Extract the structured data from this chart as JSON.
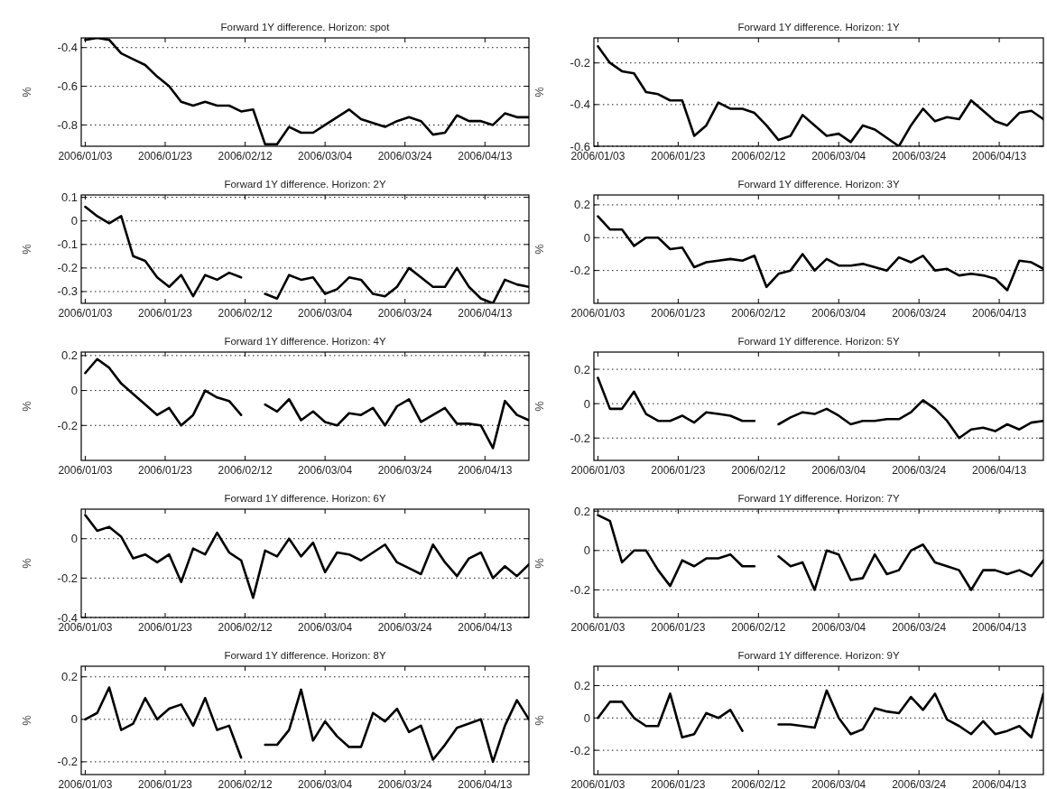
{
  "chart_data": [
    {
      "type": "line",
      "title": "Forward 1Y difference. Horizon: spot",
      "ylabel": "%",
      "grid": "y",
      "xlim": [
        "2006-01-02",
        "2006-04-24"
      ],
      "xticks": [
        {
          "value": "2006-01-03",
          "label": "2006/01/03"
        },
        {
          "value": "2006-01-23",
          "label": "2006/01/23"
        },
        {
          "value": "2006-02-12",
          "label": "2006/02/12"
        },
        {
          "value": "2006-03-04",
          "label": "2006/03/04"
        },
        {
          "value": "2006-03-24",
          "label": "2006/03/24"
        },
        {
          "value": "2006-04-13",
          "label": "2006/04/13"
        }
      ],
      "ylim": [
        -0.91,
        -0.35
      ],
      "yticks": [
        -0.8,
        -0.6,
        -0.4
      ],
      "x": [
        "2006-01-03",
        "2006-01-06",
        "2006-01-09",
        "2006-01-12",
        "2006-01-15",
        "2006-01-18",
        "2006-01-21",
        "2006-01-24",
        "2006-01-27",
        "2006-01-30",
        "2006-02-02",
        "2006-02-05",
        "2006-02-08",
        "2006-02-11",
        "2006-02-14",
        "2006-02-17",
        "2006-02-20",
        "2006-02-23",
        "2006-02-26",
        "2006-03-01",
        "2006-03-04",
        "2006-03-07",
        "2006-03-10",
        "2006-03-13",
        "2006-03-16",
        "2006-03-19",
        "2006-03-22",
        "2006-03-25",
        "2006-03-28",
        "2006-03-31",
        "2006-04-03",
        "2006-04-06",
        "2006-04-09",
        "2006-04-12",
        "2006-04-15",
        "2006-04-18",
        "2006-04-21",
        "2006-04-24"
      ],
      "series": [
        {
          "color": "#000000",
          "values": [
            -0.36,
            -0.35,
            -0.36,
            -0.43,
            -0.46,
            -0.49,
            -0.55,
            -0.6,
            -0.68,
            -0.7,
            -0.68,
            -0.7,
            -0.7,
            -0.73,
            -0.72,
            -0.9,
            -0.9,
            -0.81,
            -0.84,
            -0.84,
            -0.8,
            -0.76,
            -0.72,
            -0.77,
            -0.79,
            -0.81,
            -0.78,
            -0.76,
            -0.78,
            -0.85,
            -0.84,
            -0.75,
            -0.78,
            -0.78,
            -0.8,
            -0.74,
            -0.76,
            -0.76
          ]
        }
      ]
    },
    {
      "type": "line",
      "title": "Forward 1Y difference. Horizon: 1Y",
      "ylabel": "%",
      "grid": "y",
      "xlim": [
        "2006-01-02",
        "2006-04-24"
      ],
      "xticks": [
        {
          "value": "2006-01-03",
          "label": "2006/01/03"
        },
        {
          "value": "2006-01-23",
          "label": "2006/01/23"
        },
        {
          "value": "2006-02-12",
          "label": "2006/02/12"
        },
        {
          "value": "2006-03-04",
          "label": "2006/03/04"
        },
        {
          "value": "2006-03-24",
          "label": "2006/03/24"
        },
        {
          "value": "2006-04-13",
          "label": "2006/04/13"
        }
      ],
      "ylim": [
        -0.6,
        -0.08
      ],
      "yticks": [
        -0.6,
        -0.4,
        -0.2
      ],
      "x": [
        "2006-01-03",
        "2006-01-06",
        "2006-01-09",
        "2006-01-12",
        "2006-01-15",
        "2006-01-18",
        "2006-01-21",
        "2006-01-24",
        "2006-01-27",
        "2006-01-30",
        "2006-02-02",
        "2006-02-05",
        "2006-02-08",
        "2006-02-11",
        "2006-02-14",
        "2006-02-17",
        "2006-02-20",
        "2006-02-23",
        "2006-02-26",
        "2006-03-01",
        "2006-03-04",
        "2006-03-07",
        "2006-03-10",
        "2006-03-13",
        "2006-03-16",
        "2006-03-19",
        "2006-03-22",
        "2006-03-25",
        "2006-03-28",
        "2006-03-31",
        "2006-04-03",
        "2006-04-06",
        "2006-04-09",
        "2006-04-12",
        "2006-04-15",
        "2006-04-18",
        "2006-04-21",
        "2006-04-24"
      ],
      "series": [
        {
          "color": "#000000",
          "values": [
            -0.12,
            -0.2,
            -0.24,
            -0.25,
            -0.34,
            -0.35,
            -0.38,
            -0.38,
            -0.55,
            -0.5,
            -0.39,
            -0.42,
            -0.42,
            -0.44,
            -0.5,
            -0.57,
            -0.55,
            -0.45,
            -0.5,
            -0.55,
            -0.54,
            -0.58,
            -0.5,
            -0.52,
            -0.56,
            -0.6,
            -0.5,
            -0.42,
            -0.48,
            -0.46,
            -0.47,
            -0.38,
            -0.43,
            -0.48,
            -0.5,
            -0.44,
            -0.43,
            -0.47
          ]
        }
      ]
    },
    {
      "type": "line",
      "title": "Forward 1Y difference. Horizon: 2Y",
      "ylabel": "%",
      "grid": "y",
      "xlim": [
        "2006-01-02",
        "2006-04-24"
      ],
      "xticks": [
        {
          "value": "2006-01-03",
          "label": "2006/01/03"
        },
        {
          "value": "2006-01-23",
          "label": "2006/01/23"
        },
        {
          "value": "2006-02-12",
          "label": "2006/02/12"
        },
        {
          "value": "2006-03-04",
          "label": "2006/03/04"
        },
        {
          "value": "2006-03-24",
          "label": "2006/03/24"
        },
        {
          "value": "2006-04-13",
          "label": "2006/04/13"
        }
      ],
      "ylim": [
        -0.35,
        0.11
      ],
      "yticks": [
        -0.3,
        -0.2,
        -0.1,
        0,
        0.1
      ],
      "x": [
        "2006-01-03",
        "2006-01-06",
        "2006-01-09",
        "2006-01-12",
        "2006-01-15",
        "2006-01-18",
        "2006-01-21",
        "2006-01-24",
        "2006-01-27",
        "2006-01-30",
        "2006-02-02",
        "2006-02-05",
        "2006-02-08",
        "2006-02-11",
        "2006-02-14",
        "2006-02-17",
        "2006-02-20",
        "2006-02-23",
        "2006-02-26",
        "2006-03-01",
        "2006-03-04",
        "2006-03-07",
        "2006-03-10",
        "2006-03-13",
        "2006-03-16",
        "2006-03-19",
        "2006-03-22",
        "2006-03-25",
        "2006-03-28",
        "2006-03-31",
        "2006-04-03",
        "2006-04-06",
        "2006-04-09",
        "2006-04-12",
        "2006-04-15",
        "2006-04-18",
        "2006-04-21",
        "2006-04-24"
      ],
      "series": [
        {
          "color": "#000000",
          "values": [
            0.06,
            0.02,
            -0.01,
            0.02,
            -0.15,
            -0.17,
            -0.24,
            -0.28,
            -0.23,
            -0.32,
            -0.23,
            -0.25,
            -0.22,
            -0.24,
            null,
            -0.31,
            -0.33,
            -0.23,
            -0.25,
            -0.24,
            -0.31,
            -0.29,
            -0.24,
            -0.25,
            -0.31,
            -0.32,
            -0.28,
            -0.2,
            -0.24,
            -0.28,
            -0.28,
            -0.2,
            -0.28,
            -0.33,
            -0.35,
            -0.25,
            -0.27,
            -0.28
          ]
        }
      ]
    },
    {
      "type": "line",
      "title": "Forward 1Y difference. Horizon: 3Y",
      "ylabel": "%",
      "grid": "y",
      "xlim": [
        "2006-01-02",
        "2006-04-24"
      ],
      "xticks": [
        {
          "value": "2006-01-03",
          "label": "2006/01/03"
        },
        {
          "value": "2006-01-23",
          "label": "2006/01/23"
        },
        {
          "value": "2006-02-12",
          "label": "2006/02/12"
        },
        {
          "value": "2006-03-04",
          "label": "2006/03/04"
        },
        {
          "value": "2006-03-24",
          "label": "2006/03/24"
        },
        {
          "value": "2006-04-13",
          "label": "2006/04/13"
        }
      ],
      "ylim": [
        -0.4,
        0.26
      ],
      "yticks": [
        -0.2,
        0,
        0.2
      ],
      "x": [
        "2006-01-03",
        "2006-01-06",
        "2006-01-09",
        "2006-01-12",
        "2006-01-15",
        "2006-01-18",
        "2006-01-21",
        "2006-01-24",
        "2006-01-27",
        "2006-01-30",
        "2006-02-02",
        "2006-02-05",
        "2006-02-08",
        "2006-02-11",
        "2006-02-14",
        "2006-02-17",
        "2006-02-20",
        "2006-02-23",
        "2006-02-26",
        "2006-03-01",
        "2006-03-04",
        "2006-03-07",
        "2006-03-10",
        "2006-03-13",
        "2006-03-16",
        "2006-03-19",
        "2006-03-22",
        "2006-03-25",
        "2006-03-28",
        "2006-03-31",
        "2006-04-03",
        "2006-04-06",
        "2006-04-09",
        "2006-04-12",
        "2006-04-15",
        "2006-04-18",
        "2006-04-21",
        "2006-04-24"
      ],
      "series": [
        {
          "color": "#000000",
          "values": [
            0.13,
            0.05,
            0.05,
            -0.05,
            0,
            0,
            -0.07,
            -0.06,
            -0.18,
            -0.15,
            -0.14,
            -0.13,
            -0.14,
            -0.11,
            -0.3,
            -0.22,
            -0.2,
            -0.1,
            -0.2,
            -0.13,
            -0.17,
            -0.17,
            -0.16,
            -0.18,
            -0.2,
            -0.12,
            -0.15,
            -0.11,
            -0.2,
            -0.19,
            -0.23,
            -0.22,
            -0.23,
            -0.25,
            -0.32,
            -0.14,
            -0.15,
            -0.19
          ]
        }
      ]
    },
    {
      "type": "line",
      "title": "Forward 1Y difference. Horizon: 4Y",
      "ylabel": "%",
      "grid": "y",
      "xlim": [
        "2006-01-02",
        "2006-04-24"
      ],
      "xticks": [
        {
          "value": "2006-01-03",
          "label": "2006/01/03"
        },
        {
          "value": "2006-01-23",
          "label": "2006/01/23"
        },
        {
          "value": "2006-02-12",
          "label": "2006/02/12"
        },
        {
          "value": "2006-03-04",
          "label": "2006/03/04"
        },
        {
          "value": "2006-03-24",
          "label": "2006/03/24"
        },
        {
          "value": "2006-04-13",
          "label": "2006/04/13"
        }
      ],
      "ylim": [
        -0.4,
        0.22
      ],
      "yticks": [
        -0.2,
        0,
        0.2
      ],
      "x": [
        "2006-01-03",
        "2006-01-06",
        "2006-01-09",
        "2006-01-12",
        "2006-01-15",
        "2006-01-18",
        "2006-01-21",
        "2006-01-24",
        "2006-01-27",
        "2006-01-30",
        "2006-02-02",
        "2006-02-05",
        "2006-02-08",
        "2006-02-11",
        "2006-02-14",
        "2006-02-17",
        "2006-02-20",
        "2006-02-23",
        "2006-02-26",
        "2006-03-01",
        "2006-03-04",
        "2006-03-07",
        "2006-03-10",
        "2006-03-13",
        "2006-03-16",
        "2006-03-19",
        "2006-03-22",
        "2006-03-25",
        "2006-03-28",
        "2006-03-31",
        "2006-04-03",
        "2006-04-06",
        "2006-04-09",
        "2006-04-12",
        "2006-04-15",
        "2006-04-18",
        "2006-04-21",
        "2006-04-24"
      ],
      "series": [
        {
          "color": "#000000",
          "values": [
            0.1,
            0.18,
            0.13,
            0.04,
            -0.02,
            -0.08,
            -0.14,
            -0.1,
            -0.2,
            -0.14,
            0,
            -0.04,
            -0.06,
            -0.14,
            null,
            -0.08,
            -0.12,
            -0.05,
            -0.17,
            -0.12,
            -0.18,
            -0.2,
            -0.13,
            -0.14,
            -0.1,
            -0.2,
            -0.09,
            -0.05,
            -0.18,
            -0.14,
            -0.1,
            -0.19,
            -0.19,
            -0.2,
            -0.33,
            -0.06,
            -0.14,
            -0.17
          ]
        }
      ]
    },
    {
      "type": "line",
      "title": "Forward 1Y difference. Horizon: 5Y",
      "ylabel": "%",
      "grid": "y",
      "xlim": [
        "2006-01-02",
        "2006-04-24"
      ],
      "xticks": [
        {
          "value": "2006-01-03",
          "label": "2006/01/03"
        },
        {
          "value": "2006-01-23",
          "label": "2006/01/23"
        },
        {
          "value": "2006-02-12",
          "label": "2006/02/12"
        },
        {
          "value": "2006-03-04",
          "label": "2006/03/04"
        },
        {
          "value": "2006-03-24",
          "label": "2006/03/24"
        },
        {
          "value": "2006-04-13",
          "label": "2006/04/13"
        }
      ],
      "ylim": [
        -0.33,
        0.3
      ],
      "yticks": [
        -0.2,
        0,
        0.2
      ],
      "x": [
        "2006-01-03",
        "2006-01-06",
        "2006-01-09",
        "2006-01-12",
        "2006-01-15",
        "2006-01-18",
        "2006-01-21",
        "2006-01-24",
        "2006-01-27",
        "2006-01-30",
        "2006-02-02",
        "2006-02-05",
        "2006-02-08",
        "2006-02-11",
        "2006-02-14",
        "2006-02-17",
        "2006-02-20",
        "2006-02-23",
        "2006-02-26",
        "2006-03-01",
        "2006-03-04",
        "2006-03-07",
        "2006-03-10",
        "2006-03-13",
        "2006-03-16",
        "2006-03-19",
        "2006-03-22",
        "2006-03-25",
        "2006-03-28",
        "2006-03-31",
        "2006-04-03",
        "2006-04-06",
        "2006-04-09",
        "2006-04-12",
        "2006-04-15",
        "2006-04-18",
        "2006-04-21",
        "2006-04-24"
      ],
      "series": [
        {
          "color": "#000000",
          "values": [
            0.15,
            -0.03,
            -0.03,
            0.07,
            -0.06,
            -0.1,
            -0.1,
            -0.07,
            -0.11,
            -0.05,
            -0.06,
            -0.07,
            -0.1,
            -0.1,
            null,
            -0.12,
            -0.08,
            -0.05,
            -0.06,
            -0.03,
            -0.07,
            -0.12,
            -0.1,
            -0.1,
            -0.09,
            -0.09,
            -0.05,
            0.02,
            -0.03,
            -0.1,
            -0.2,
            -0.15,
            -0.14,
            -0.16,
            -0.12,
            -0.15,
            -0.11,
            -0.1
          ]
        }
      ]
    },
    {
      "type": "line",
      "title": "Forward 1Y difference. Horizon: 6Y",
      "ylabel": "%",
      "grid": "y",
      "xlim": [
        "2006-01-02",
        "2006-04-24"
      ],
      "xticks": [
        {
          "value": "2006-01-03",
          "label": "2006/01/03"
        },
        {
          "value": "2006-01-23",
          "label": "2006/01/23"
        },
        {
          "value": "2006-02-12",
          "label": "2006/02/12"
        },
        {
          "value": "2006-03-04",
          "label": "2006/03/04"
        },
        {
          "value": "2006-03-24",
          "label": "2006/03/24"
        },
        {
          "value": "2006-04-13",
          "label": "2006/04/13"
        }
      ],
      "ylim": [
        -0.4,
        0.15
      ],
      "yticks": [
        -0.4,
        -0.2,
        0
      ],
      "x": [
        "2006-01-03",
        "2006-01-06",
        "2006-01-09",
        "2006-01-12",
        "2006-01-15",
        "2006-01-18",
        "2006-01-21",
        "2006-01-24",
        "2006-01-27",
        "2006-01-30",
        "2006-02-02",
        "2006-02-05",
        "2006-02-08",
        "2006-02-11",
        "2006-02-14",
        "2006-02-17",
        "2006-02-20",
        "2006-02-23",
        "2006-02-26",
        "2006-03-01",
        "2006-03-04",
        "2006-03-07",
        "2006-03-10",
        "2006-03-13",
        "2006-03-16",
        "2006-03-19",
        "2006-03-22",
        "2006-03-25",
        "2006-03-28",
        "2006-03-31",
        "2006-04-03",
        "2006-04-06",
        "2006-04-09",
        "2006-04-12",
        "2006-04-15",
        "2006-04-18",
        "2006-04-21",
        "2006-04-24"
      ],
      "series": [
        {
          "color": "#000000",
          "values": [
            0.12,
            0.04,
            0.06,
            0.01,
            -0.1,
            -0.08,
            -0.12,
            -0.08,
            -0.22,
            -0.05,
            -0.08,
            0.03,
            -0.07,
            -0.11,
            -0.3,
            -0.06,
            -0.09,
            0,
            -0.09,
            -0.02,
            -0.17,
            -0.07,
            -0.08,
            -0.11,
            -0.07,
            -0.03,
            -0.12,
            -0.15,
            -0.18,
            -0.03,
            -0.12,
            -0.19,
            -0.1,
            -0.07,
            -0.2,
            -0.14,
            -0.19,
            -0.13
          ]
        }
      ]
    },
    {
      "type": "line",
      "title": "Forward 1Y difference. Horizon: 7Y",
      "ylabel": "%",
      "grid": "y",
      "xlim": [
        "2006-01-02",
        "2006-04-24"
      ],
      "xticks": [
        {
          "value": "2006-01-03",
          "label": "2006/01/03"
        },
        {
          "value": "2006-01-23",
          "label": "2006/01/23"
        },
        {
          "value": "2006-02-12",
          "label": "2006/02/12"
        },
        {
          "value": "2006-03-04",
          "label": "2006/03/04"
        },
        {
          "value": "2006-03-24",
          "label": "2006/03/24"
        },
        {
          "value": "2006-04-13",
          "label": "2006/04/13"
        }
      ],
      "ylim": [
        -0.34,
        0.21
      ],
      "yticks": [
        -0.2,
        0,
        0.2
      ],
      "x": [
        "2006-01-03",
        "2006-01-06",
        "2006-01-09",
        "2006-01-12",
        "2006-01-15",
        "2006-01-18",
        "2006-01-21",
        "2006-01-24",
        "2006-01-27",
        "2006-01-30",
        "2006-02-02",
        "2006-02-05",
        "2006-02-08",
        "2006-02-11",
        "2006-02-14",
        "2006-02-17",
        "2006-02-20",
        "2006-02-23",
        "2006-02-26",
        "2006-03-01",
        "2006-03-04",
        "2006-03-07",
        "2006-03-10",
        "2006-03-13",
        "2006-03-16",
        "2006-03-19",
        "2006-03-22",
        "2006-03-25",
        "2006-03-28",
        "2006-03-31",
        "2006-04-03",
        "2006-04-06",
        "2006-04-09",
        "2006-04-12",
        "2006-04-15",
        "2006-04-18",
        "2006-04-21",
        "2006-04-24"
      ],
      "series": [
        {
          "color": "#000000",
          "values": [
            0.18,
            0.15,
            -0.06,
            0,
            0,
            -0.1,
            -0.18,
            -0.05,
            -0.08,
            -0.04,
            -0.04,
            -0.02,
            -0.08,
            -0.08,
            null,
            -0.03,
            -0.08,
            -0.06,
            -0.2,
            0,
            -0.02,
            -0.15,
            -0.14,
            -0.02,
            -0.12,
            -0.1,
            0,
            0.03,
            -0.06,
            -0.08,
            -0.1,
            -0.2,
            -0.1,
            -0.1,
            -0.12,
            -0.1,
            -0.13,
            -0.05
          ]
        }
      ]
    },
    {
      "type": "line",
      "title": "Forward 1Y difference. Horizon: 8Y",
      "ylabel": "%",
      "grid": "y",
      "xlim": [
        "2006-01-02",
        "2006-04-24"
      ],
      "xticks": [
        {
          "value": "2006-01-03",
          "label": "2006/01/03"
        },
        {
          "value": "2006-01-23",
          "label": "2006/01/23"
        },
        {
          "value": "2006-02-12",
          "label": "2006/02/12"
        },
        {
          "value": "2006-03-04",
          "label": "2006/03/04"
        },
        {
          "value": "2006-03-24",
          "label": "2006/03/24"
        },
        {
          "value": "2006-04-13",
          "label": "2006/04/13"
        }
      ],
      "ylim": [
        -0.26,
        0.25
      ],
      "yticks": [
        -0.2,
        0,
        0.2
      ],
      "x": [
        "2006-01-03",
        "2006-01-06",
        "2006-01-09",
        "2006-01-12",
        "2006-01-15",
        "2006-01-18",
        "2006-01-21",
        "2006-01-24",
        "2006-01-27",
        "2006-01-30",
        "2006-02-02",
        "2006-02-05",
        "2006-02-08",
        "2006-02-11",
        "2006-02-14",
        "2006-02-17",
        "2006-02-20",
        "2006-02-23",
        "2006-02-26",
        "2006-03-01",
        "2006-03-04",
        "2006-03-07",
        "2006-03-10",
        "2006-03-13",
        "2006-03-16",
        "2006-03-19",
        "2006-03-22",
        "2006-03-25",
        "2006-03-28",
        "2006-03-31",
        "2006-04-03",
        "2006-04-06",
        "2006-04-09",
        "2006-04-12",
        "2006-04-15",
        "2006-04-18",
        "2006-04-21",
        "2006-04-24"
      ],
      "series": [
        {
          "color": "#000000",
          "values": [
            0,
            0.03,
            0.15,
            -0.05,
            -0.02,
            0.1,
            0,
            0.05,
            0.07,
            -0.03,
            0.1,
            -0.05,
            -0.03,
            -0.18,
            null,
            -0.12,
            -0.12,
            -0.05,
            0.14,
            -0.1,
            -0.01,
            -0.08,
            -0.13,
            -0.13,
            0.03,
            -0.01,
            0.05,
            -0.06,
            -0.03,
            -0.19,
            -0.12,
            -0.04,
            -0.02,
            0,
            -0.2,
            -0.03,
            0.09,
            0
          ]
        }
      ]
    },
    {
      "type": "line",
      "title": "Forward 1Y difference. Horizon: 9Y",
      "ylabel": "%",
      "grid": "y",
      "xlim": [
        "2006-01-02",
        "2006-04-24"
      ],
      "xticks": [
        {
          "value": "2006-01-03",
          "label": "2006/01/03"
        },
        {
          "value": "2006-01-23",
          "label": "2006/01/23"
        },
        {
          "value": "2006-02-12",
          "label": "2006/02/12"
        },
        {
          "value": "2006-03-04",
          "label": "2006/03/04"
        },
        {
          "value": "2006-03-24",
          "label": "2006/03/24"
        },
        {
          "value": "2006-04-13",
          "label": "2006/04/13"
        }
      ],
      "ylim": [
        -0.35,
        0.32
      ],
      "yticks": [
        -0.2,
        0,
        0.2
      ],
      "x": [
        "2006-01-03",
        "2006-01-06",
        "2006-01-09",
        "2006-01-12",
        "2006-01-15",
        "2006-01-18",
        "2006-01-21",
        "2006-01-24",
        "2006-01-27",
        "2006-01-30",
        "2006-02-02",
        "2006-02-05",
        "2006-02-08",
        "2006-02-11",
        "2006-02-14",
        "2006-02-17",
        "2006-02-20",
        "2006-02-23",
        "2006-02-26",
        "2006-03-01",
        "2006-03-04",
        "2006-03-07",
        "2006-03-10",
        "2006-03-13",
        "2006-03-16",
        "2006-03-19",
        "2006-03-22",
        "2006-03-25",
        "2006-03-28",
        "2006-03-31",
        "2006-04-03",
        "2006-04-06",
        "2006-04-09",
        "2006-04-12",
        "2006-04-15",
        "2006-04-18",
        "2006-04-21",
        "2006-04-24"
      ],
      "series": [
        {
          "color": "#000000",
          "values": [
            0,
            0.1,
            0.1,
            0,
            -0.05,
            -0.05,
            0.15,
            -0.12,
            -0.1,
            0.03,
            0,
            0.05,
            -0.08,
            null,
            null,
            -0.04,
            -0.04,
            -0.05,
            -0.06,
            0.17,
            0,
            -0.1,
            -0.07,
            0.06,
            0.04,
            0.03,
            0.13,
            0.05,
            0.15,
            -0.01,
            -0.05,
            -0.1,
            -0.02,
            -0.1,
            -0.08,
            -0.05,
            -0.12,
            0.15
          ]
        }
      ]
    }
  ]
}
